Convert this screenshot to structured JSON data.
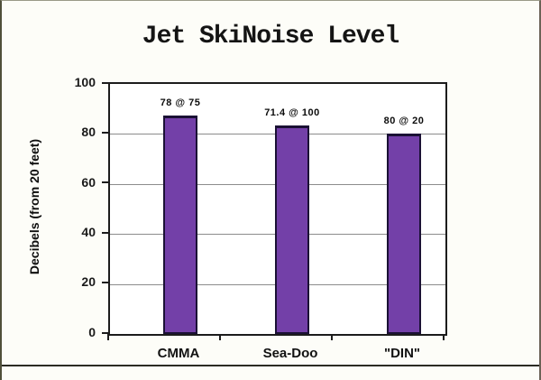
{
  "page": {
    "title": "Jet SkiNoise Level"
  },
  "chart_data": {
    "type": "bar",
    "title": "Jet SkiNoise Level",
    "categories": [
      "CMMA",
      "Sea-Doo",
      "\"DIN\""
    ],
    "values": [
      87.5,
      83.5,
      80
    ],
    "bar_labels": [
      "78 @ 75",
      "71.4 @ 100",
      "80 @ 20"
    ],
    "bar_labels_meaning": "decibels @ measurement distance in feet",
    "xlabel": "",
    "ylabel": "Decibels (from 20 feet)",
    "ylim": [
      0,
      100
    ],
    "yticks": [
      100,
      80,
      60,
      40,
      20,
      0
    ],
    "grid": true,
    "legend": false,
    "bar_color": "#7340A8",
    "bar_border_color": "#1b1135",
    "gridline_color": "#8c8c8c"
  }
}
